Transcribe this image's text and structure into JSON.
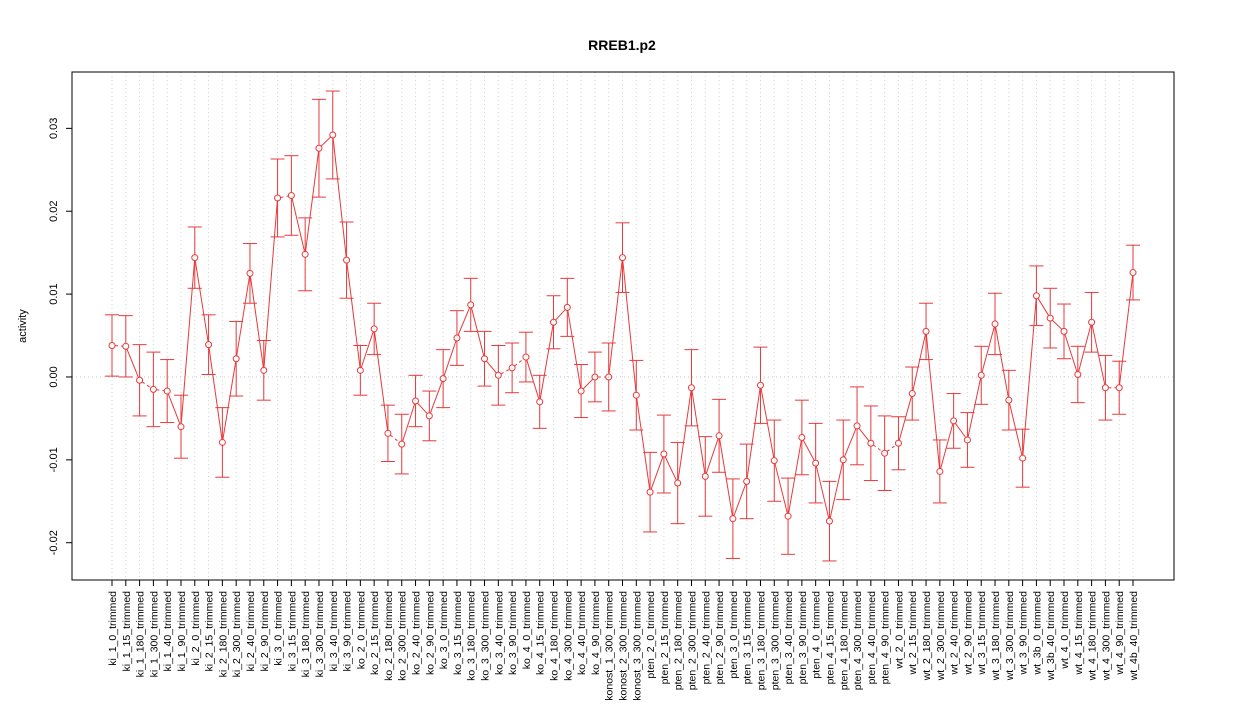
{
  "chart_data": {
    "type": "line",
    "title": "RREB1.p2",
    "ylabel": "activity",
    "xlabel": "",
    "ylim": [
      -0.0245,
      0.0368
    ],
    "yticks": [
      -0.02,
      -0.01,
      0.0,
      0.01,
      0.02,
      0.03
    ],
    "ytick_labels": [
      "-0.02",
      "-0.01",
      "0.00",
      "0.01",
      "0.02",
      "0.03"
    ],
    "grid": true,
    "reference_line": 0,
    "color": "#e8393b",
    "categories": [
      "ki_1_0_trimmed",
      "ki_1_15_trimmed",
      "ki_1_180_trimmed",
      "ki_1_300_trimmed",
      "ki_1_40_trimmed",
      "ki_1_90_trimmed",
      "ki_2_0_trimmed",
      "ki_2_15_trimmed",
      "ki_2_180_trimmed",
      "ki_2_300_trimmed",
      "ki_2_40_trimmed",
      "ki_2_90_trimmed",
      "ki_3_0_trimmed",
      "ki_3_15_trimmed",
      "ki_3_180_trimmed",
      "ki_3_300_trimmed",
      "ki_3_40_trimmed",
      "ki_3_90_trimmed",
      "ko_2_0_trimmed",
      "ko_2_15_trimmed",
      "ko_2_180_trimmed",
      "ko_2_300_trimmed",
      "ko_2_40_trimmed",
      "ko_2_90_trimmed",
      "ko_3_0_trimmed",
      "ko_3_15_trimmed",
      "ko_3_180_trimmed",
      "ko_3_300_trimmed",
      "ko_3_40_trimmed",
      "ko_3_90_trimmed",
      "ko_4_0_trimmed",
      "ko_4_15_trimmed",
      "ko_4_180_trimmed",
      "ko_4_300_trimmed",
      "ko_4_40_trimmed",
      "ko_4_90_trimmed",
      "konost_1_300_trimmed",
      "konost_2_300_trimmed",
      "konost_3_300_trimmed",
      "pten_2_0_trimmed",
      "pten_2_15_trimmed",
      "pten_2_180_trimmed",
      "pten_2_300_trimmed",
      "pten_2_40_trimmed",
      "pten_2_90_trimmed",
      "pten_3_0_trimmed",
      "pten_3_15_trimmed",
      "pten_3_180_trimmed",
      "pten_3_300_trimmed",
      "pten_3_40_trimmed",
      "pten_3_90_trimmed",
      "pten_4_0_trimmed",
      "pten_4_15_trimmed",
      "pten_4_180_trimmed",
      "pten_4_300_trimmed",
      "pten_4_40_trimmed",
      "pten_4_90_trimmed",
      "wt_2_0_trimmed",
      "wt_2_15_trimmed",
      "wt_2_180_trimmed",
      "wt_2_300_trimmed",
      "wt_2_40_trimmed",
      "wt_2_90_trimmed",
      "wt_3_15_trimmed",
      "wt_3_180_trimmed",
      "wt_3_300_trimmed",
      "wt_3_90_trimmed",
      "wt_3b_0_trimmed",
      "wt_3b_40_trimmed",
      "wt_4_0_trimmed",
      "wt_4_15_trimmed",
      "wt_4_180_trimmed",
      "wt_4_300_trimmed",
      "wt_4_90_trimmed",
      "wt_4b_40_trimmed"
    ],
    "values": [
      0.0038,
      0.0037,
      -0.0004,
      -0.0015,
      -0.0017,
      -0.006,
      0.0144,
      0.0039,
      -0.0079,
      0.0022,
      0.0125,
      0.0008,
      0.0216,
      0.0219,
      0.0148,
      0.0276,
      0.0292,
      0.0141,
      0.0008,
      0.0058,
      -0.0068,
      -0.0081,
      -0.0029,
      -0.0047,
      -0.0002,
      0.0047,
      0.0087,
      0.0022,
      0.0002,
      0.0011,
      0.0024,
      -0.003,
      0.0066,
      0.0084,
      -0.0017,
      0.0,
      0.0,
      0.0144,
      -0.0022,
      -0.0139,
      -0.0093,
      -0.0128,
      -0.0013,
      -0.012,
      -0.0071,
      -0.0171,
      -0.0126,
      -0.001,
      -0.0101,
      -0.0168,
      -0.0073,
      -0.0104,
      -0.0174,
      -0.01,
      -0.0059,
      -0.008,
      -0.0092,
      -0.008,
      -0.002,
      0.0055,
      -0.0114,
      -0.0053,
      -0.0076,
      0.0002,
      0.0064,
      -0.0028,
      -0.0098,
      0.0098,
      0.0071,
      0.0055,
      0.0003,
      0.0066,
      -0.0013,
      -0.0013,
      0.0126
    ],
    "errors": [
      0.0037,
      0.0037,
      0.0043,
      0.0045,
      0.0038,
      0.0038,
      0.0037,
      0.0036,
      0.0042,
      0.0045,
      0.0036,
      0.0036,
      0.0047,
      0.0048,
      0.0044,
      0.0059,
      0.0053,
      0.0046,
      0.003,
      0.0031,
      0.0034,
      0.0036,
      0.0031,
      0.003,
      0.0035,
      0.0033,
      0.0032,
      0.0033,
      0.0036,
      0.003,
      0.003,
      0.0032,
      0.0032,
      0.0035,
      0.0032,
      0.003,
      0.0041,
      0.0042,
      0.0042,
      0.0048,
      0.0047,
      0.0049,
      0.0046,
      0.0048,
      0.0044,
      0.0048,
      0.0045,
      0.0046,
      0.0049,
      0.0046,
      0.0045,
      0.0048,
      0.0048,
      0.0048,
      0.0047,
      0.0045,
      0.0045,
      0.0032,
      0.0032,
      0.0034,
      0.0038,
      0.0033,
      0.0033,
      0.0035,
      0.0037,
      0.0036,
      0.0035,
      0.0036,
      0.0036,
      0.0033,
      0.0034,
      0.0036,
      0.0039,
      0.0032,
      0.0033
    ]
  }
}
